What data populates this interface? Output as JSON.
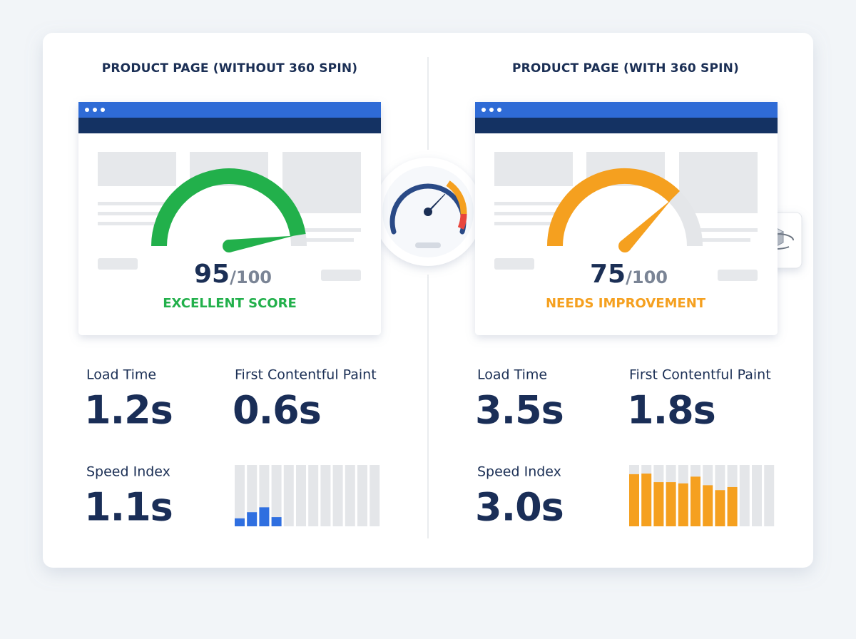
{
  "panels": [
    {
      "title": "PRODUCT PAGE (WITHOUT 360 SPIN)",
      "score": 95,
      "max": {
        "value": 100,
        "label": "/100"
      },
      "status": "EXCELLENT SCORE",
      "color": "#22b04b",
      "metrics": [
        {
          "label": "Load Time",
          "value": "1.2s"
        },
        {
          "label": "First Contentful Paint",
          "value": "0.6s"
        },
        {
          "label": "Speed Index",
          "value": "1.1s"
        }
      ],
      "bars": {
        "color": "#2f6fe0",
        "values": [
          13,
          23,
          31,
          15
        ]
      }
    },
    {
      "title": "PRODUCT PAGE (WITH 360 SPIN)",
      "score": 75,
      "max": {
        "value": 100,
        "label": "/100"
      },
      "status": "NEEDS IMPROVEMENT",
      "color": "#f5a01f",
      "metrics": [
        {
          "label": "Load Time",
          "value": "3.5s"
        },
        {
          "label": "First Contentful Paint",
          "value": "1.8s"
        },
        {
          "label": "Speed Index",
          "value": "3.0s"
        }
      ],
      "bars": {
        "color": "#f5a01f",
        "values": [
          85,
          86,
          72,
          72,
          70,
          81,
          67,
          59,
          64
        ]
      }
    }
  ]
}
